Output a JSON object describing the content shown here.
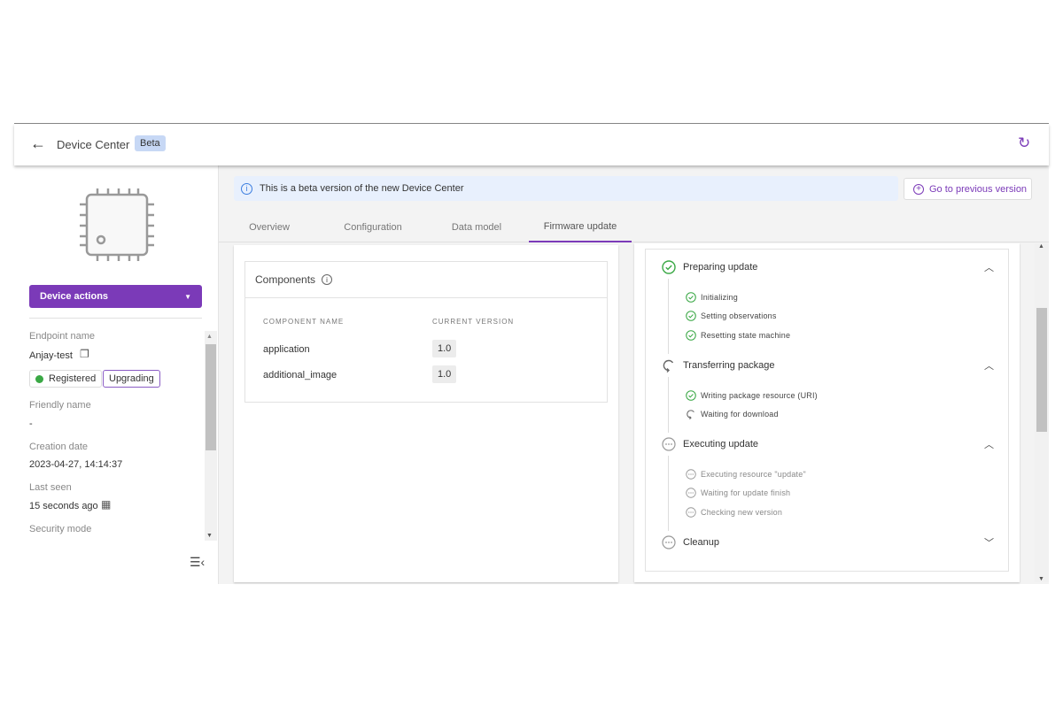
{
  "header": {
    "title": "Device Center",
    "badge": "Beta"
  },
  "sidebar": {
    "device_actions": "Device actions",
    "endpoint_label": "Endpoint name",
    "endpoint_value": "Anjay-test",
    "status_registered": "Registered",
    "status_upgrading": "Upgrading",
    "friendly_label": "Friendly name",
    "friendly_value": "-",
    "creation_label": "Creation date",
    "creation_value": "2023-04-27, 14:14:37",
    "last_seen_label": "Last seen",
    "last_seen_value": "15 seconds ago",
    "security_label": "Security mode"
  },
  "banner": {
    "text": "This is a beta version of the new Device Center",
    "button": "Go to previous version"
  },
  "tabs": [
    {
      "label": "Overview"
    },
    {
      "label": "Configuration"
    },
    {
      "label": "Data model"
    },
    {
      "label": "Firmware update",
      "active": true
    }
  ],
  "components": {
    "title": "Components",
    "col_name": "COMPONENT NAME",
    "col_version": "CURRENT VERSION",
    "rows": [
      {
        "name": "application",
        "version": "1.0"
      },
      {
        "name": "additional_image",
        "version": "1.0"
      }
    ]
  },
  "steps": [
    {
      "label": "Preparing update",
      "status": "done",
      "expanded": true,
      "subs": [
        {
          "label": "Initializing",
          "status": "done"
        },
        {
          "label": "Setting observations",
          "status": "done"
        },
        {
          "label": "Resetting state machine",
          "status": "done"
        }
      ]
    },
    {
      "label": "Transferring package",
      "status": "progress",
      "expanded": true,
      "subs": [
        {
          "label": "Writing package resource (URI)",
          "status": "done"
        },
        {
          "label": "Waiting for download",
          "status": "progress"
        }
      ]
    },
    {
      "label": "Executing update",
      "status": "pending",
      "expanded": true,
      "subs": [
        {
          "label": "Executing resource \"update\"",
          "status": "pending"
        },
        {
          "label": "Waiting for update finish",
          "status": "pending"
        },
        {
          "label": "Checking new version",
          "status": "pending"
        }
      ]
    },
    {
      "label": "Cleanup",
      "status": "pending",
      "expanded": false,
      "subs": []
    }
  ],
  "colors": {
    "accent": "#7b3ab8",
    "success": "#3aa845",
    "banner": "#e8f0fd",
    "badge": "#c7d8f5"
  }
}
